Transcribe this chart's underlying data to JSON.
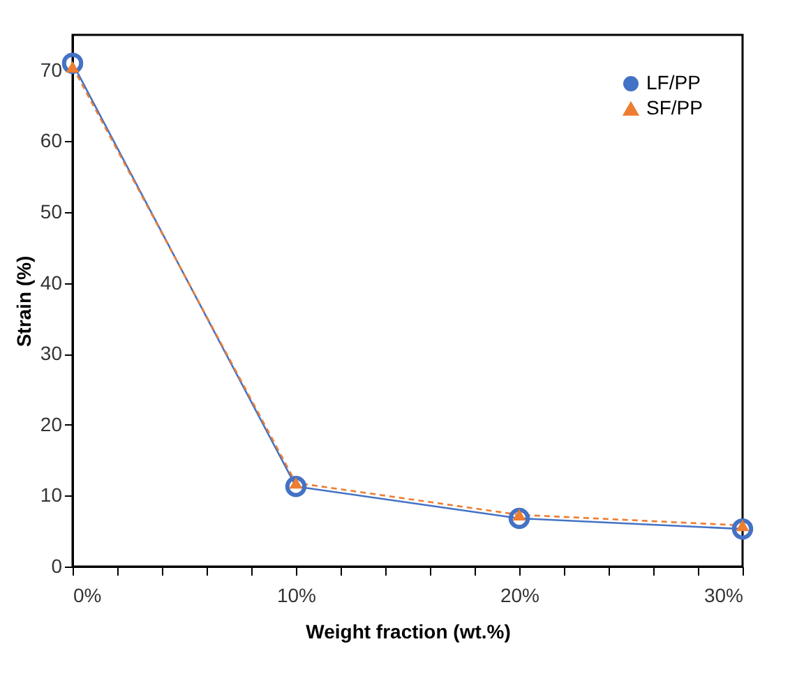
{
  "chart_data": {
    "type": "line",
    "xlabel": "Weight fraction (wt.%)",
    "ylabel": "Strain (%)",
    "x": [
      0,
      10,
      20,
      30
    ],
    "series": [
      {
        "name": "LF/PP",
        "color": "#4472c4",
        "values": [
          71,
          11.3,
          6.8,
          5.3
        ],
        "marker": "circle",
        "line_style": "solid"
      },
      {
        "name": "SF/PP",
        "color": "#ed7d31",
        "values": [
          70.5,
          11.8,
          7.3,
          5.8
        ],
        "marker": "triangle",
        "line_style": "dashed"
      }
    ],
    "xlim": [
      0,
      30
    ],
    "xticks": [
      {
        "value": 0,
        "label": "0%"
      },
      {
        "value": 2,
        "label": null
      },
      {
        "value": 4,
        "label": null
      },
      {
        "value": 6,
        "label": null
      },
      {
        "value": 8,
        "label": null
      },
      {
        "value": 10,
        "label": "10%"
      },
      {
        "value": 12,
        "label": null
      },
      {
        "value": 14,
        "label": null
      },
      {
        "value": 16,
        "label": null
      },
      {
        "value": 18,
        "label": null
      },
      {
        "value": 20,
        "label": "20%"
      },
      {
        "value": 22,
        "label": null
      },
      {
        "value": 24,
        "label": null
      },
      {
        "value": 26,
        "label": null
      },
      {
        "value": 28,
        "label": null
      },
      {
        "value": 30,
        "label": "30%"
      }
    ],
    "ylim": [
      0,
      75
    ],
    "yticks": [
      0,
      10,
      20,
      30,
      40,
      50,
      60,
      70
    ],
    "grid": false,
    "legend": "top right"
  }
}
